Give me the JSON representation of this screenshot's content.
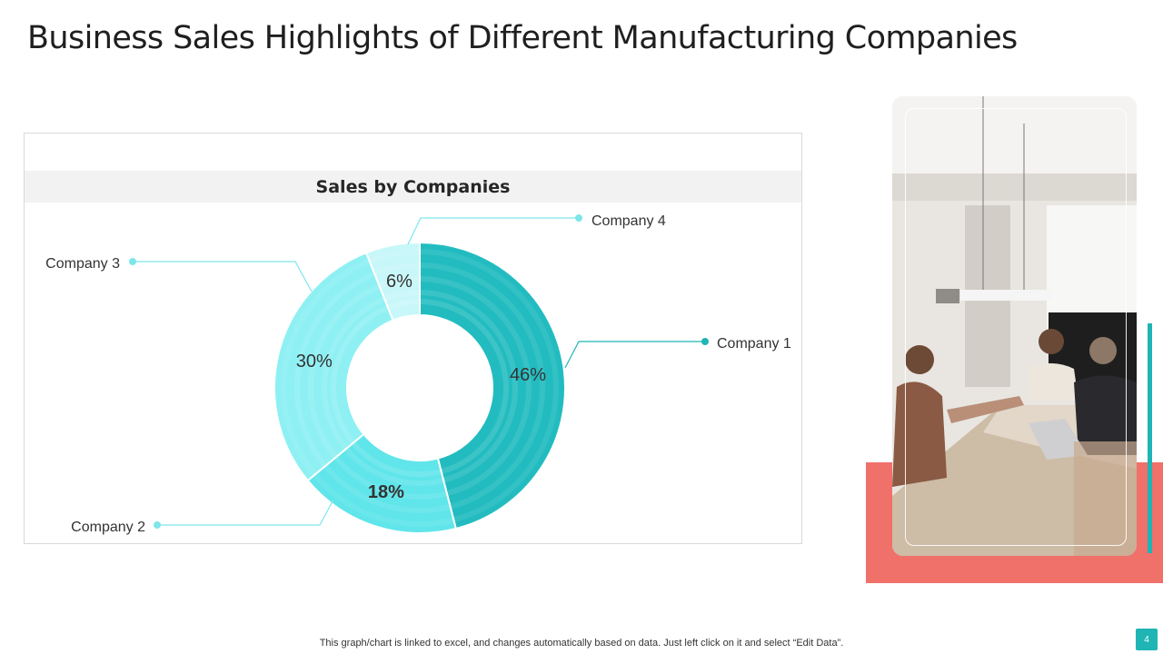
{
  "slide": {
    "title": "Business Sales Highlights of Different Manufacturing Companies",
    "footnote": "This graph/chart is linked to excel,  and changes automatically based on data. Just left click on it and select “Edit Data”.",
    "page_number": "4"
  },
  "colors": {
    "accent_teal": "#1fb5b5",
    "accent_coral": "#f0706a",
    "company_1": "#22bcc0",
    "company_2": "#5fe5ea",
    "company_3": "#8ef0f3",
    "company_4": "#c8f7f9"
  },
  "photo": {
    "icon": "meeting-photo"
  },
  "chart_data": {
    "type": "pie",
    "title": "Sales by Companies",
    "categories": [
      "Company 1",
      "Company 2",
      "Company 3",
      "Company 4"
    ],
    "values": [
      46,
      18,
      30,
      6
    ],
    "labels": [
      "46%",
      "18%",
      "30%",
      "6%"
    ],
    "unit": "%",
    "donut": true,
    "legend": "callout-labels"
  }
}
